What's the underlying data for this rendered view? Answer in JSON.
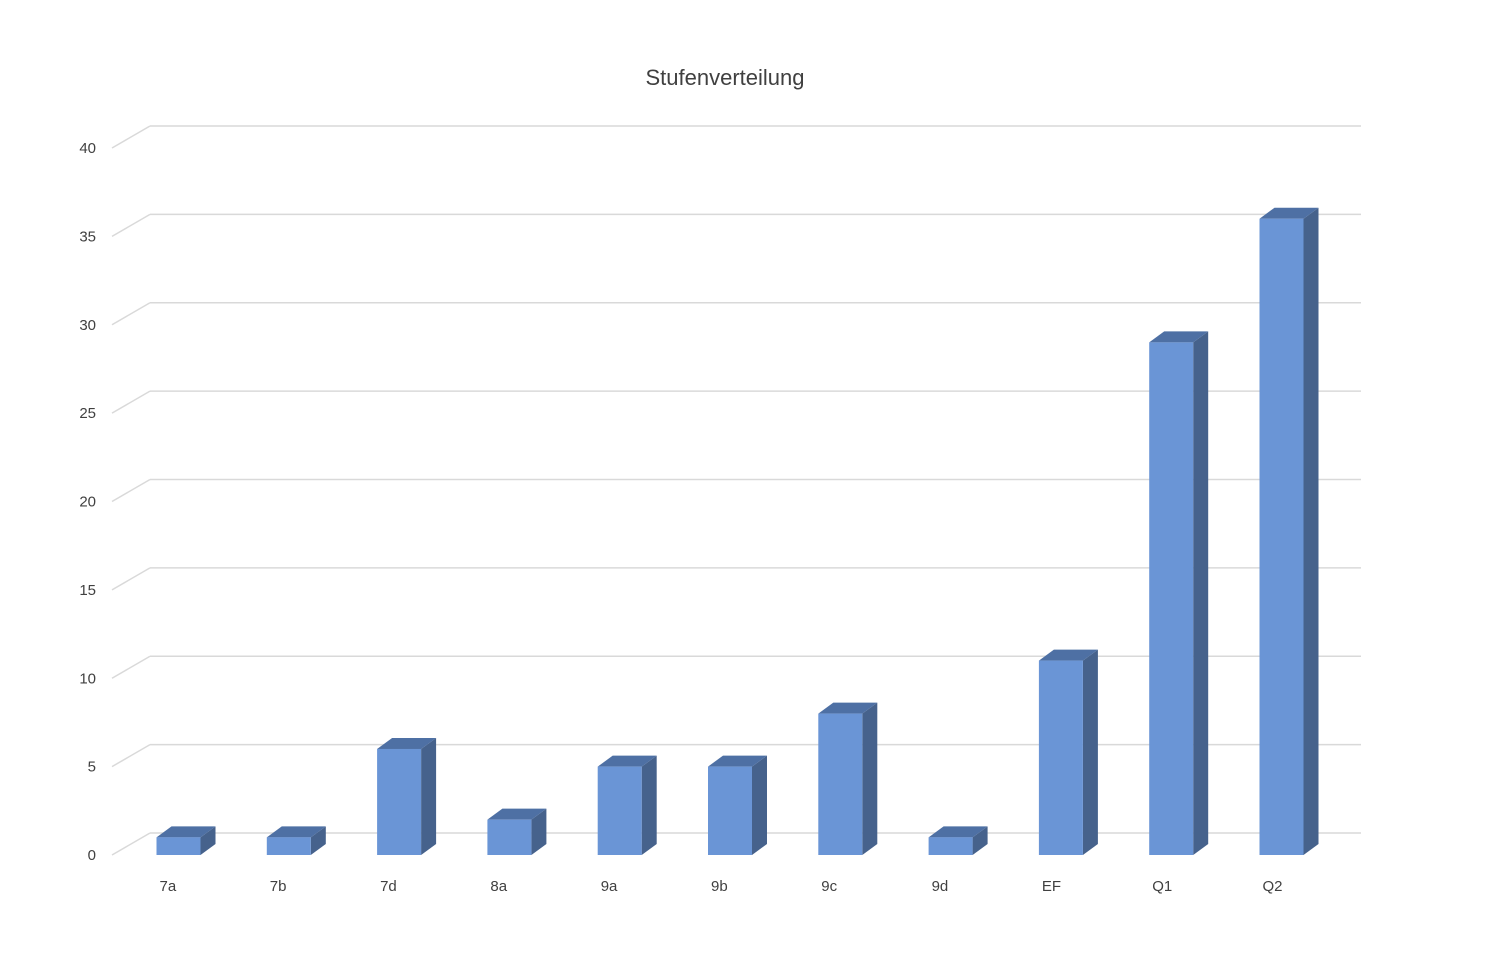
{
  "chart_data": {
    "type": "bar",
    "title": "Stufenverteilung",
    "categories": [
      "7a",
      "7b",
      "7d",
      "8a",
      "9a",
      "9b",
      "9c",
      "9d",
      "EF",
      "Q1",
      "Q2"
    ],
    "values": [
      1,
      1,
      6,
      2,
      5,
      5,
      8,
      1,
      11,
      29,
      36
    ],
    "ylim": [
      0,
      40
    ],
    "yticks": [
      0,
      5,
      10,
      15,
      20,
      25,
      30,
      35,
      40
    ],
    "grid": true,
    "legend": "none",
    "style": "3d-column",
    "colors": {
      "bar_front": "#6a95d6",
      "bar_side": "#46628c",
      "bar_top": "#4e70a4",
      "grid": "#d9d9d9",
      "text": "#404040"
    }
  }
}
